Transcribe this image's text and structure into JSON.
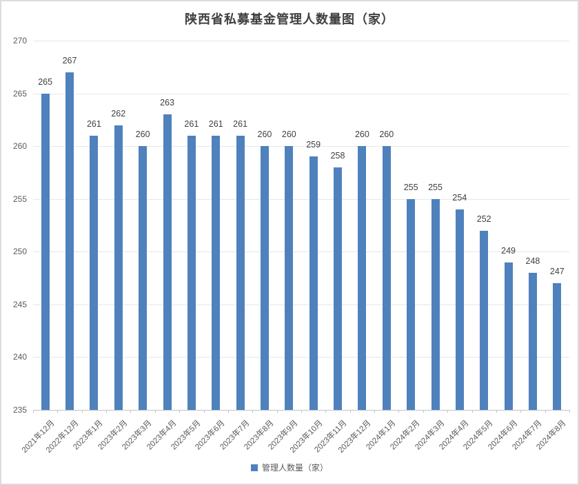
{
  "chart_data": {
    "type": "bar",
    "title": "陕西省私募基金管理人数量图（家）",
    "categories": [
      "2021年12月",
      "2022年12月",
      "2023年1月",
      "2023年2月",
      "2023年3月",
      "2023年4月",
      "2023年5月",
      "2023年6月",
      "2023年7月",
      "2023年8月",
      "2023年9月",
      "2023年10月",
      "2023年11月",
      "2023年12月",
      "2024年1月",
      "2024年2月",
      "2024年3月",
      "2024年4月",
      "2024年5月",
      "2024年6月",
      "2024年7月",
      "2024年8月"
    ],
    "values": [
      265,
      267,
      261,
      262,
      260,
      263,
      261,
      261,
      261,
      260,
      260,
      259,
      258,
      260,
      260,
      255,
      255,
      254,
      252,
      249,
      248,
      247
    ],
    "series_name": "管理人数量（家）",
    "xlabel": "",
    "ylabel": "",
    "ylim": [
      235,
      270
    ],
    "ytick_step": 5,
    "ytick_labels": [
      "235",
      "240",
      "245",
      "250",
      "255",
      "260",
      "265",
      "270"
    ],
    "grid": "horizontal",
    "data_labels": true,
    "legend_position": "bottom",
    "colors": {
      "bar": "#4f81bd",
      "gridline": "#e7e7e7",
      "axis_line": "#c3c3c3",
      "axis_text": "#595959",
      "value_label_text": "#404040",
      "title_text": "#3f3f3f"
    }
  }
}
